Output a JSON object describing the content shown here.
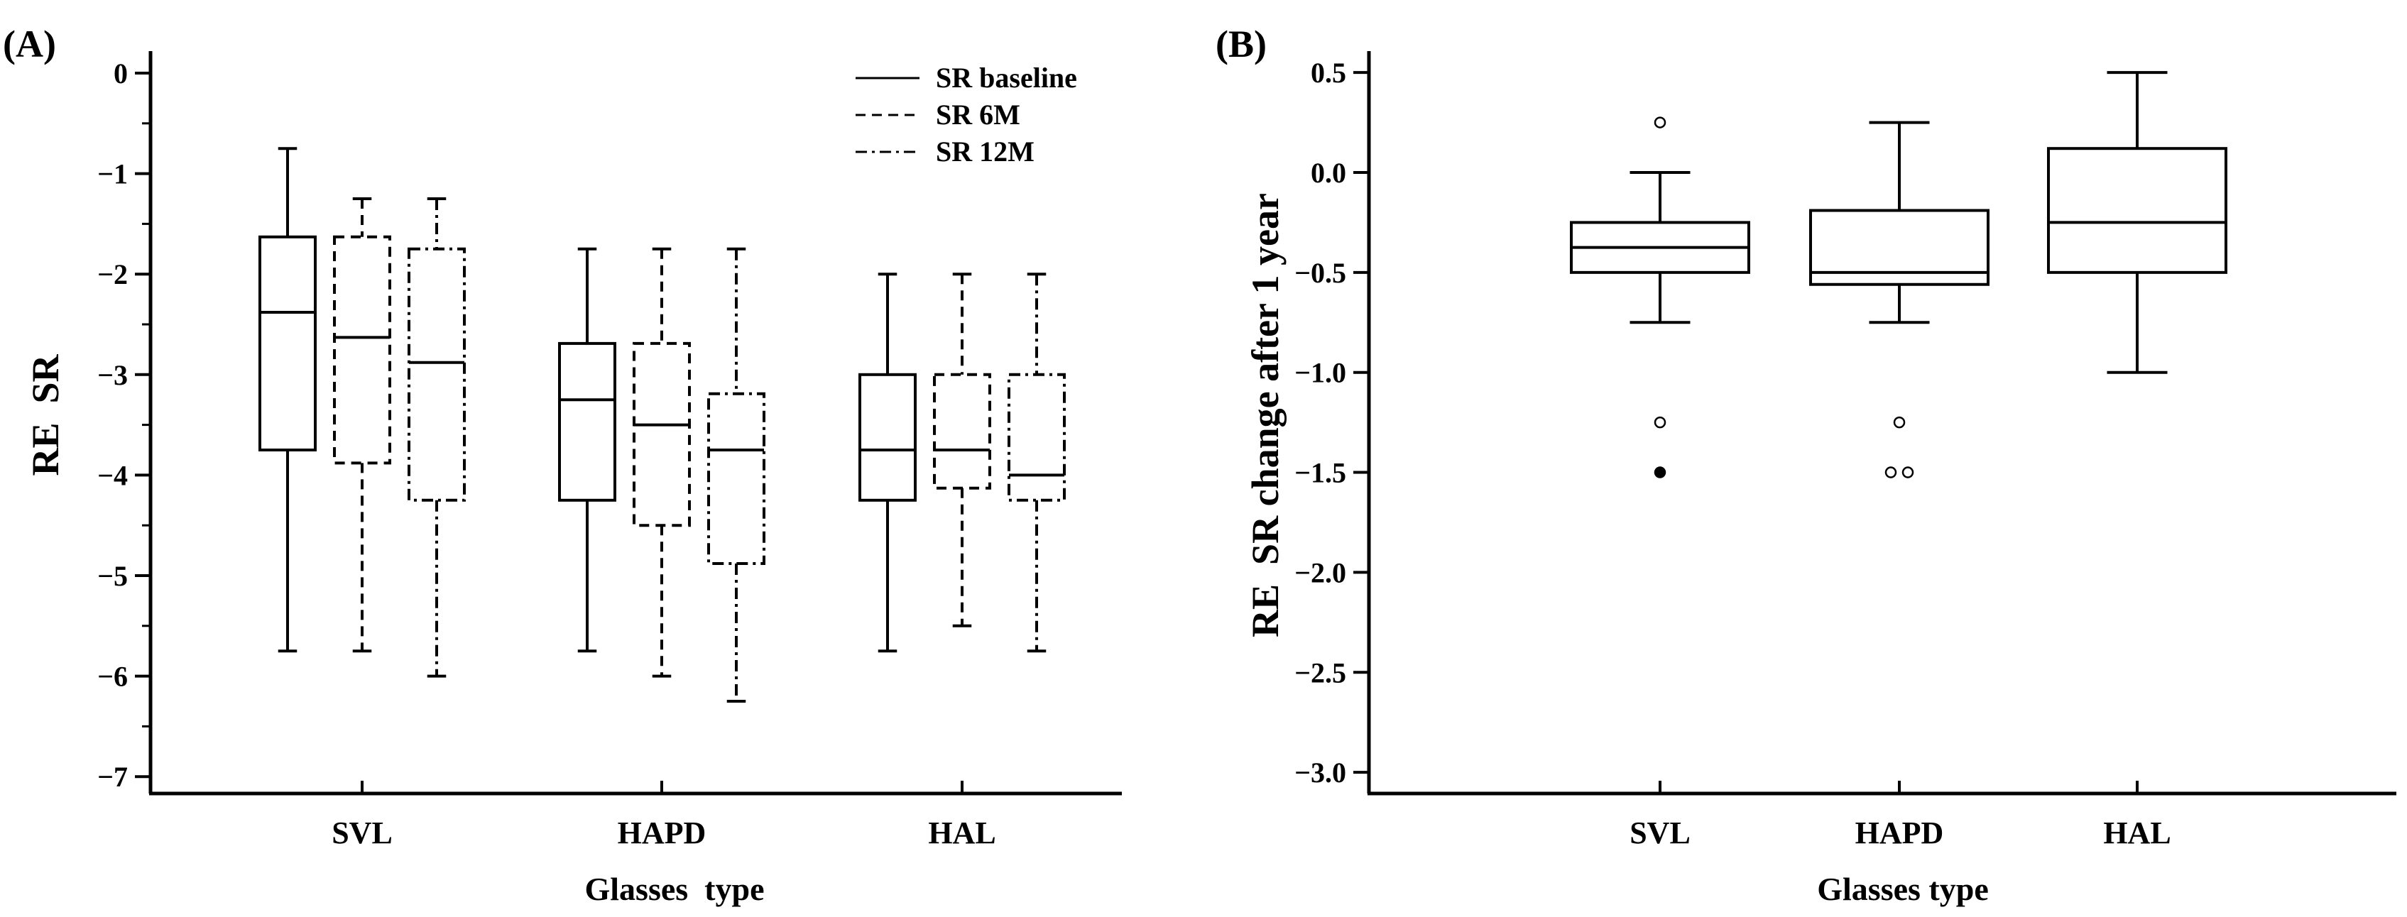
{
  "chart_data": [
    {
      "type": "box",
      "panel_label": "(A)",
      "title": "",
      "xlabel": "Glasses  type",
      "ylabel": "RE  SR",
      "ylim": [
        -7.2,
        0.2
      ],
      "yticks": [
        0,
        -1,
        -2,
        -3,
        -4,
        -5,
        -6,
        -7
      ],
      "ytick_labels": [
        "0",
        "−1",
        "−2",
        "−3",
        "−4",
        "−5",
        "−6",
        "−7"
      ],
      "categories": [
        "SVL",
        "HAPD",
        "HAL"
      ],
      "grid": false,
      "legend_position": "top-right",
      "series": [
        {
          "name": "SR baseline",
          "line_style": "solid",
          "boxes": [
            {
              "whisker_low": -5.75,
              "q1": -3.75,
              "median": -2.38,
              "q3": -1.63,
              "whisker_high": -0.75
            },
            {
              "whisker_low": -5.75,
              "q1": -4.25,
              "median": -3.25,
              "q3": -2.69,
              "whisker_high": -1.75
            },
            {
              "whisker_low": -5.75,
              "q1": -4.25,
              "median": -3.75,
              "q3": -3.0,
              "whisker_high": -2.0
            }
          ]
        },
        {
          "name": "SR 6M",
          "line_style": "dashed",
          "boxes": [
            {
              "whisker_low": -5.75,
              "q1": -3.88,
              "median": -2.63,
              "q3": -1.63,
              "whisker_high": -1.25
            },
            {
              "whisker_low": -6.0,
              "q1": -4.5,
              "median": -3.5,
              "q3": -2.69,
              "whisker_high": -1.75
            },
            {
              "whisker_low": -5.5,
              "q1": -4.13,
              "median": -3.75,
              "q3": -3.0,
              "whisker_high": -2.0
            }
          ]
        },
        {
          "name": "SR 12M",
          "line_style": "dashdot",
          "boxes": [
            {
              "whisker_low": -6.0,
              "q1": -4.25,
              "median": -2.88,
              "q3": -1.75,
              "whisker_high": -1.25
            },
            {
              "whisker_low": -6.25,
              "q1": -4.88,
              "median": -3.75,
              "q3": -3.19,
              "whisker_high": -1.75
            },
            {
              "whisker_low": -5.75,
              "q1": -4.25,
              "median": -4.0,
              "q3": -3.0,
              "whisker_high": -2.0
            }
          ]
        }
      ]
    },
    {
      "type": "box",
      "panel_label": "(B)",
      "title": "",
      "xlabel": "Glasses type",
      "ylabel": "RE  SR change after 1 year",
      "ylim": [
        -3.1,
        0.6
      ],
      "yticks": [
        0.5,
        0.0,
        -0.5,
        -1.0,
        -1.5,
        -2.0,
        -2.5,
        -3.0
      ],
      "ytick_labels": [
        "0.5",
        "0.0",
        "−0.5",
        "−1.0",
        "−1.5",
        "−2.0",
        "−2.5",
        "−3.0"
      ],
      "categories": [
        "SVL",
        "HAPD",
        "HAL"
      ],
      "grid": false,
      "boxes": [
        {
          "whisker_low": -0.75,
          "q1": -0.5,
          "median": -0.375,
          "q3": -0.25,
          "whisker_high": 0.0,
          "outliers": [
            {
              "y": 0.25,
              "filled": false,
              "offset": 0
            },
            {
              "y": -1.25,
              "filled": false,
              "offset": 0
            },
            {
              "y": -1.5,
              "filled": true,
              "offset": 0
            }
          ]
        },
        {
          "whisker_low": -0.75,
          "q1": -0.56,
          "median": -0.5,
          "q3": -0.19,
          "whisker_high": 0.25,
          "outliers": [
            {
              "y": -1.25,
              "filled": false,
              "offset": 0
            },
            {
              "y": -1.5,
              "filled": false,
              "offset": -1
            },
            {
              "y": -1.5,
              "filled": false,
              "offset": 1
            }
          ]
        },
        {
          "whisker_low": -1.0,
          "q1": -0.5,
          "median": -0.25,
          "q3": 0.12,
          "whisker_high": 0.5,
          "outliers": []
        }
      ]
    }
  ]
}
